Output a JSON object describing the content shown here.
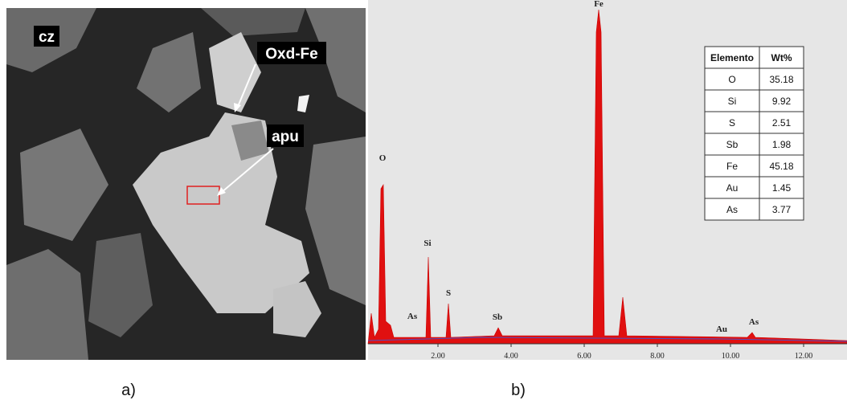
{
  "panel_a": {
    "labels": [
      "cz",
      "Oxd-Fe",
      "apu"
    ],
    "caption": "a)"
  },
  "panel_b": {
    "peak_labels": [
      "O",
      "Si",
      "As",
      "S",
      "Sb",
      "Fe",
      "Au",
      "As"
    ],
    "x_tick_labels": [
      "2.00",
      "4.00",
      "6.00",
      "8.00",
      "10.00",
      "12.00"
    ],
    "table": {
      "header": [
        "Elemento",
        "Wt%"
      ],
      "rows": [
        [
          "O",
          "35.18"
        ],
        [
          "Si",
          "9.92"
        ],
        [
          "S",
          "2.51"
        ],
        [
          "Sb",
          "1.98"
        ],
        [
          "Fe",
          "45.18"
        ],
        [
          "Au",
          "1.45"
        ],
        [
          "As",
          "3.77"
        ]
      ]
    },
    "caption": "b)"
  }
}
